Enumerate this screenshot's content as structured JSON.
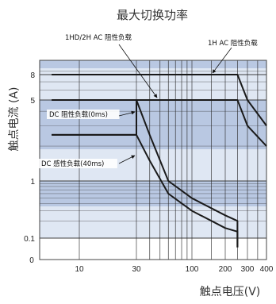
{
  "chart_data": {
    "type": "line",
    "title": "最大切换功率",
    "xlabel": "触点电压(V)",
    "ylabel": "触点电流 (A)",
    "x_scale": "log",
    "y_scale": "log",
    "xlim": [
      0,
      400
    ],
    "ylim": [
      0,
      10
    ],
    "x_ticks": [
      {
        "value": 10,
        "label": "10"
      },
      {
        "value": 30,
        "label": "30"
      },
      {
        "value": 100,
        "label": "100"
      },
      {
        "value": 200,
        "label": "200"
      },
      {
        "value": 300,
        "label": "300"
      },
      {
        "value": 400,
        "label": "400"
      }
    ],
    "x_origin_label": "0",
    "y_ticks": [
      {
        "value": 8,
        "label": "8"
      },
      {
        "value": 5,
        "label": "5"
      },
      {
        "value": 1,
        "label": "1"
      },
      {
        "value": 0.1,
        "label": "0.1"
      }
    ],
    "y_origin_label": "0",
    "grid": true,
    "series": [
      {
        "name": "1HD/2H AC 阻性负载",
        "points": [
          [
            2,
            8
          ],
          [
            250,
            8
          ],
          [
            300,
            5
          ],
          [
            400,
            3
          ]
        ]
      },
      {
        "name": "1H AC 阻性负载",
        "points": [
          [
            2,
            5
          ],
          [
            250,
            5
          ],
          [
            300,
            3
          ],
          [
            400,
            2
          ]
        ]
      },
      {
        "name": "DC 阻性负载(0ms)",
        "points": [
          [
            2,
            2.5
          ],
          [
            30,
            2.5
          ],
          [
            30,
            5
          ],
          [
            40,
            2.5
          ],
          [
            60,
            1
          ],
          [
            100,
            0.5
          ],
          [
            200,
            0.25
          ],
          [
            250,
            0.2
          ],
          [
            250,
            0.05
          ]
        ]
      },
      {
        "name": "DC 感性负载(40ms)",
        "points": [
          [
            2,
            2.5
          ],
          [
            30,
            2.5
          ],
          [
            40,
            1.5
          ],
          [
            60,
            0.6
          ],
          [
            100,
            0.3
          ],
          [
            200,
            0.15
          ],
          [
            250,
            0.13
          ],
          [
            250,
            0.05
          ]
        ]
      }
    ],
    "colors": {
      "band_light": "#dfe7f3",
      "band_dark": "#b9c8e2",
      "grid": "#2b2b2b",
      "curve": "#1a1a1a",
      "text": "#222222"
    }
  }
}
